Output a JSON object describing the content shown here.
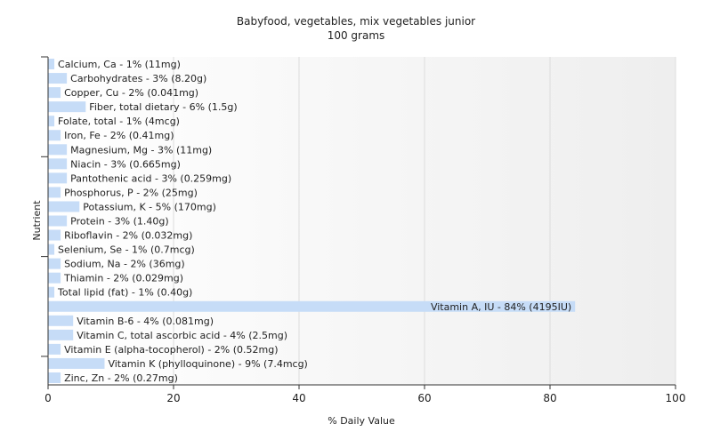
{
  "chart_data": {
    "type": "bar",
    "orientation": "horizontal",
    "title": "Babyfood, vegetables, mix vegetables junior",
    "subtitle": "100 grams",
    "xlabel": "% Daily Value",
    "ylabel": "Nutrient",
    "xlim": [
      0,
      100
    ],
    "xticks": [
      0,
      20,
      40,
      60,
      80,
      100
    ],
    "grid": true,
    "bar_color": "#c6dcf7",
    "categories": [
      "Calcium, Ca",
      "Carbohydrates",
      "Copper, Cu",
      "Fiber, total dietary",
      "Folate, total",
      "Iron, Fe",
      "Magnesium, Mg",
      "Niacin",
      "Pantothenic acid",
      "Phosphorus, P",
      "Potassium, K",
      "Protein",
      "Riboflavin",
      "Selenium, Se",
      "Sodium, Na",
      "Thiamin",
      "Total lipid (fat)",
      "Vitamin A, IU",
      "Vitamin B-6",
      "Vitamin C, total ascorbic acid",
      "Vitamin E (alpha-tocopherol)",
      "Vitamin K (phylloquinone)",
      "Zinc, Zn"
    ],
    "values": [
      1,
      3,
      2,
      6,
      1,
      2,
      3,
      3,
      3,
      2,
      5,
      3,
      2,
      1,
      2,
      2,
      1,
      84,
      4,
      4,
      2,
      9,
      2
    ],
    "labels": [
      "Calcium, Ca - 1% (11mg)",
      "Carbohydrates - 3% (8.20g)",
      "Copper, Cu - 2% (0.041mg)",
      "Fiber, total dietary - 6% (1.5g)",
      "Folate, total - 1% (4mcg)",
      "Iron, Fe - 2% (0.41mg)",
      "Magnesium, Mg - 3% (11mg)",
      "Niacin - 3% (0.665mg)",
      "Pantothenic acid - 3% (0.259mg)",
      "Phosphorus, P - 2% (25mg)",
      "Potassium, K - 5% (170mg)",
      "Protein - 3% (1.40g)",
      "Riboflavin - 2% (0.032mg)",
      "Selenium, Se - 1% (0.7mcg)",
      "Sodium, Na - 2% (36mg)",
      "Thiamin - 2% (0.029mg)",
      "Total lipid (fat) - 1% (0.40g)",
      "Vitamin A, IU - 84% (4195IU)",
      "Vitamin B-6 - 4% (0.081mg)",
      "Vitamin C, total ascorbic acid - 4% (2.5mg)",
      "Vitamin E (alpha-tocopherol) - 2% (0.52mg)",
      "Vitamin K (phylloquinone) - 9% (7.4mcg)",
      "Zinc, Zn - 2% (0.27mg)"
    ]
  }
}
